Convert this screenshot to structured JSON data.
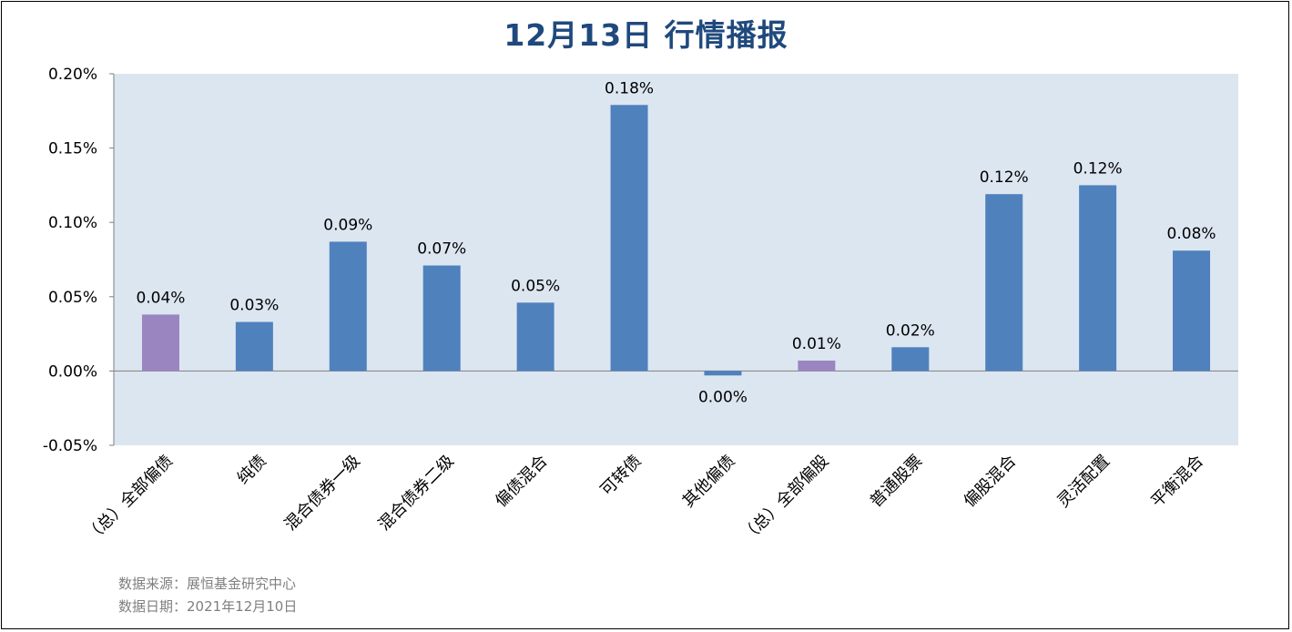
{
  "title": "12月13日  行情播报",
  "source": {
    "line1": "数据来源：展恒基金研究中心",
    "line2": "数据日期：2021年12月10日"
  },
  "colors": {
    "plot_bg": "#dce6f1",
    "bar_primary": "#4f81bd",
    "bar_highlight": "#9b85c1",
    "axis": "#808080",
    "title": "#1f497d"
  },
  "chart_data": {
    "type": "bar",
    "title": "12月13日  行情播报",
    "categories": [
      "（总）全部偏债",
      "纯债",
      "混合债券一级",
      "混合债券二级",
      "偏债混合",
      "可转债",
      "其他偏债",
      "（总）全部偏股",
      "普通股票",
      "偏股混合",
      "灵活配置",
      "平衡混合"
    ],
    "values": [
      0.038,
      0.033,
      0.087,
      0.071,
      0.046,
      0.179,
      -0.003,
      0.007,
      0.016,
      0.119,
      0.125,
      0.081
    ],
    "data_labels": [
      "0.04%",
      "0.03%",
      "0.09%",
      "0.07%",
      "0.05%",
      "0.18%",
      "0.00%",
      "0.01%",
      "0.02%",
      "0.12%",
      "0.12%",
      "0.08%"
    ],
    "highlight": [
      true,
      false,
      false,
      false,
      false,
      false,
      false,
      true,
      false,
      false,
      false,
      false
    ],
    "y_unit": "%",
    "ylim": [
      -0.05,
      0.2
    ],
    "yticks": [
      -0.05,
      0,
      0.05,
      0.1,
      0.15,
      0.2
    ],
    "ytick_labels": [
      "-0.05%",
      "0.00%",
      "0.05%",
      "0.10%",
      "0.15%",
      "0.20%"
    ],
    "xlabel": "",
    "ylabel": "",
    "legend": "none",
    "grid": false
  }
}
